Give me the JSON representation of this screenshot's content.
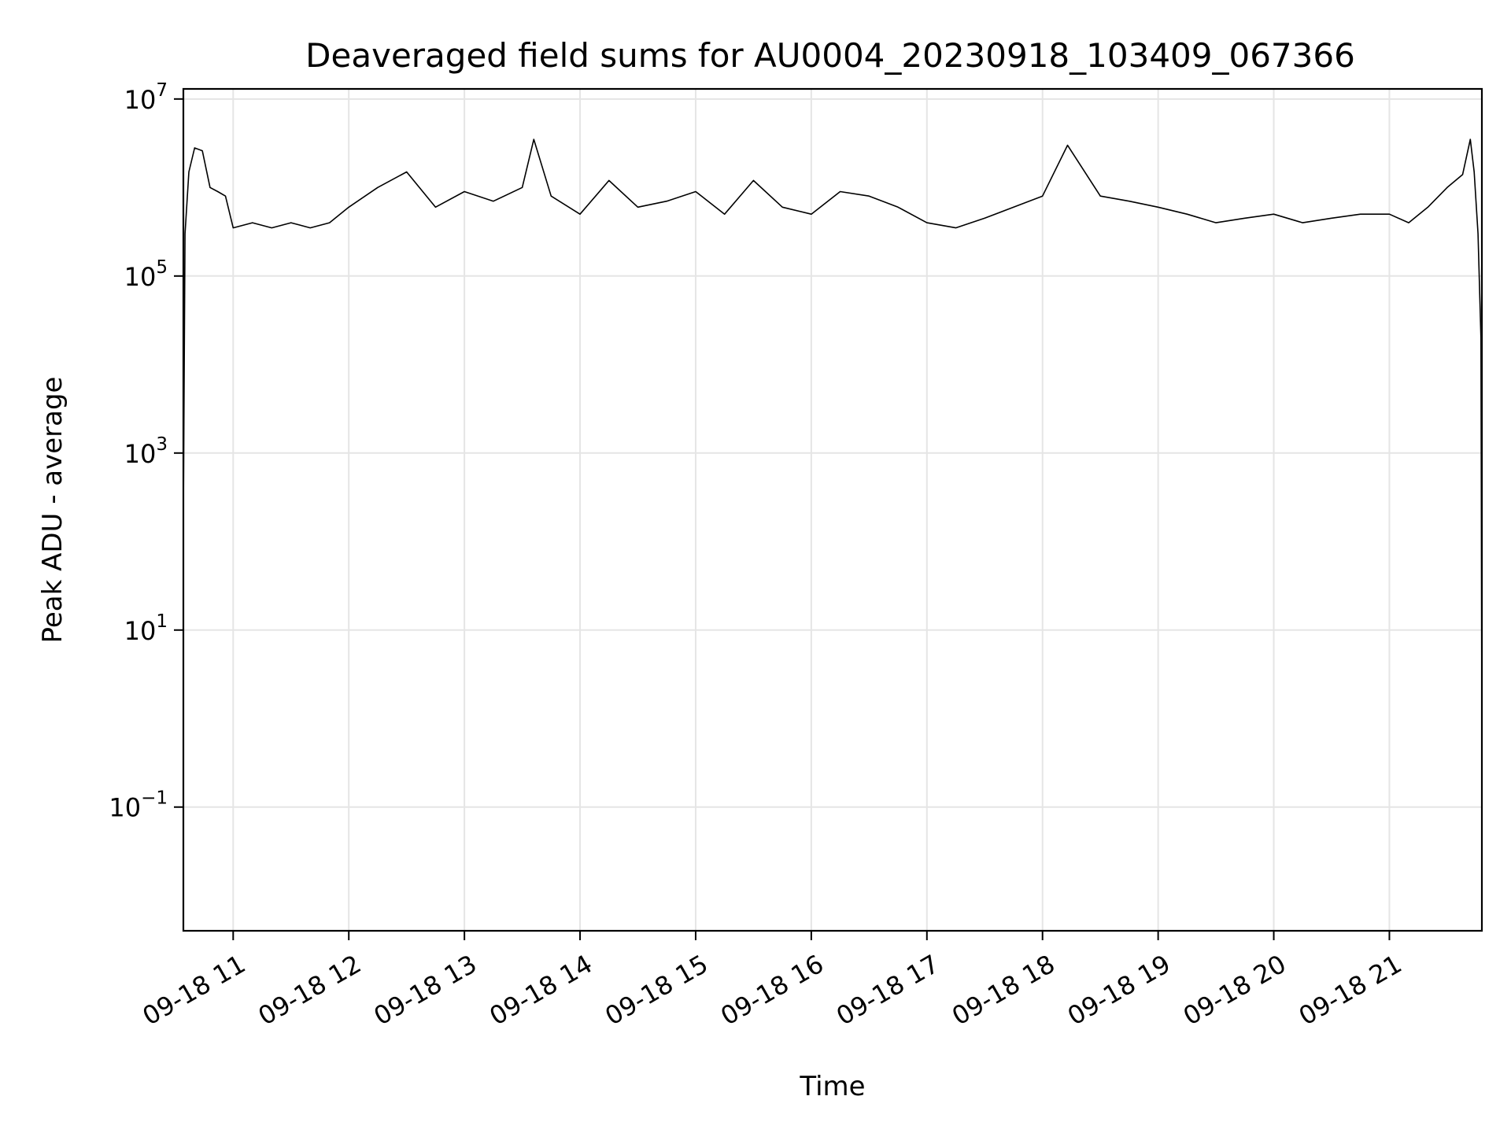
{
  "chart_data": {
    "type": "line",
    "title": "Deaveraged field sums for AU0004_20230918_103409_067366",
    "xlabel": "Time",
    "ylabel": "Peak ADU - average",
    "y_scale": "log",
    "ylim": [
      0.004,
      13000000
    ],
    "xlim": [
      "2023-09-18 10:34:09",
      "2023-09-18 21:48:00"
    ],
    "grid": true,
    "line_color": "#000000",
    "grid_color": "#e5e5e5",
    "x_ticks": [
      {
        "value": "2023-09-18 11:00",
        "label": "09-18 11"
      },
      {
        "value": "2023-09-18 12:00",
        "label": "09-18 12"
      },
      {
        "value": "2023-09-18 13:00",
        "label": "09-18 13"
      },
      {
        "value": "2023-09-18 14:00",
        "label": "09-18 14"
      },
      {
        "value": "2023-09-18 15:00",
        "label": "09-18 15"
      },
      {
        "value": "2023-09-18 16:00",
        "label": "09-18 16"
      },
      {
        "value": "2023-09-18 17:00",
        "label": "09-18 17"
      },
      {
        "value": "2023-09-18 18:00",
        "label": "09-18 18"
      },
      {
        "value": "2023-09-18 19:00",
        "label": "09-18 19"
      },
      {
        "value": "2023-09-18 20:00",
        "label": "09-18 20"
      },
      {
        "value": "2023-09-18 21:00",
        "label": "09-18 21"
      }
    ],
    "y_ticks": [
      {
        "value": 10000000,
        "base": "10",
        "exp": "7"
      },
      {
        "value": 100000,
        "base": "10",
        "exp": "5"
      },
      {
        "value": 1000,
        "base": "10",
        "exp": "3"
      },
      {
        "value": 10,
        "base": "10",
        "exp": "1"
      },
      {
        "value": 0.1,
        "base": "10",
        "exp": "−1"
      }
    ],
    "series": [
      {
        "x": [
          "2023-09-18 10:34:09",
          "2023-09-18 10:35:00",
          "2023-09-18 10:37:00",
          "2023-09-18 10:40:00",
          "2023-09-18 10:44:00",
          "2023-09-18 10:48:00",
          "2023-09-18 10:52:00",
          "2023-09-18 10:56:00",
          "2023-09-18 11:00:00",
          "2023-09-18 11:10:00",
          "2023-09-18 11:20:00",
          "2023-09-18 11:30:00",
          "2023-09-18 11:40:00",
          "2023-09-18 11:50:00",
          "2023-09-18 12:00:00",
          "2023-09-18 12:15:00",
          "2023-09-18 12:30:00",
          "2023-09-18 12:45:00",
          "2023-09-18 13:00:00",
          "2023-09-18 13:15:00",
          "2023-09-18 13:30:00",
          "2023-09-18 13:36:00",
          "2023-09-18 13:45:00",
          "2023-09-18 14:00:00",
          "2023-09-18 14:15:00",
          "2023-09-18 14:30:00",
          "2023-09-18 14:45:00",
          "2023-09-18 15:00:00",
          "2023-09-18 15:15:00",
          "2023-09-18 15:30:00",
          "2023-09-18 15:45:00",
          "2023-09-18 16:00:00",
          "2023-09-18 16:15:00",
          "2023-09-18 16:30:00",
          "2023-09-18 16:45:00",
          "2023-09-18 17:00:00",
          "2023-09-18 17:15:00",
          "2023-09-18 17:30:00",
          "2023-09-18 17:45:00",
          "2023-09-18 18:00:00",
          "2023-09-18 18:13:00",
          "2023-09-18 18:30:00",
          "2023-09-18 18:45:00",
          "2023-09-18 19:00:00",
          "2023-09-18 19:15:00",
          "2023-09-18 19:30:00",
          "2023-09-18 19:45:00",
          "2023-09-18 20:00:00",
          "2023-09-18 20:15:00",
          "2023-09-18 20:30:00",
          "2023-09-18 20:45:00",
          "2023-09-18 21:00:00",
          "2023-09-18 21:10:00",
          "2023-09-18 21:20:00",
          "2023-09-18 21:30:00",
          "2023-09-18 21:38:00",
          "2023-09-18 21:42:00",
          "2023-09-18 21:44:00",
          "2023-09-18 21:46:00",
          "2023-09-18 21:47:30",
          "2023-09-18 21:48:00"
        ],
        "y": [
          200,
          300000,
          1500000,
          2800000,
          2600000,
          1000000,
          900000,
          800000,
          350000,
          400000,
          350000,
          400000,
          350000,
          400000,
          600000,
          1000000,
          1500000,
          600000,
          900000,
          700000,
          1000000,
          3500000,
          800000,
          500000,
          1200000,
          600000,
          700000,
          900000,
          500000,
          1200000,
          600000,
          500000,
          900000,
          800000,
          600000,
          400000,
          350000,
          450000,
          600000,
          800000,
          3000000,
          800000,
          700000,
          600000,
          500000,
          400000,
          450000,
          500000,
          400000,
          450000,
          500000,
          500000,
          400000,
          600000,
          1000000,
          1400000,
          3500000,
          1500000,
          300000,
          20000,
          1
        ]
      }
    ]
  }
}
